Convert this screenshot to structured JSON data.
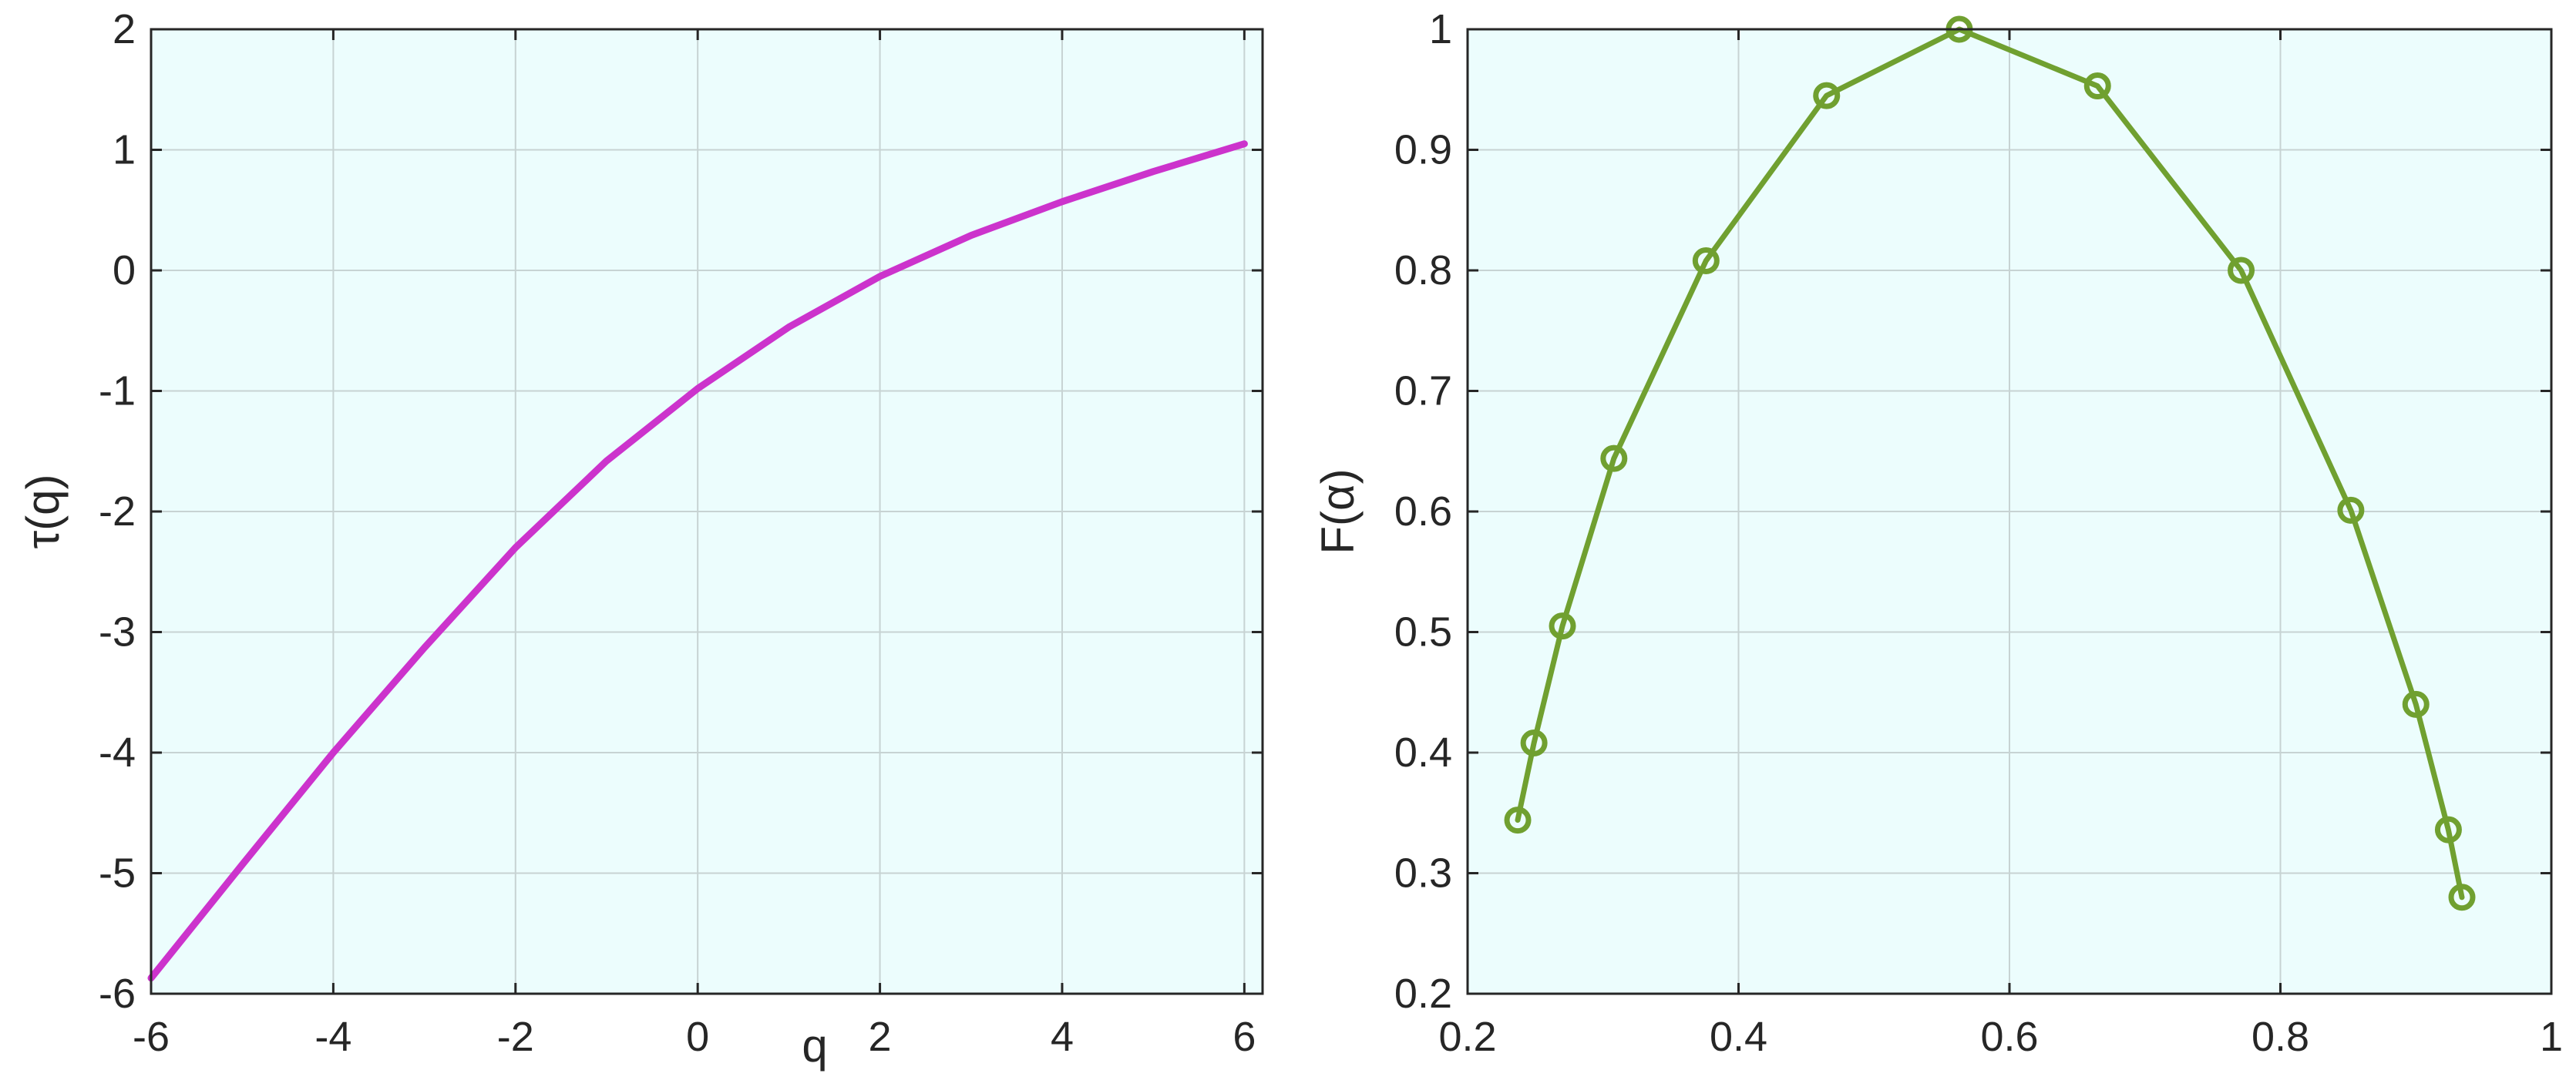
{
  "chart_data": [
    {
      "type": "line",
      "title": "",
      "xlabel": "q",
      "ylabel": "τ(q)",
      "xlim": [
        -6,
        6.2
      ],
      "ylim": [
        -6,
        2
      ],
      "xticks": [
        -6,
        -4,
        -2,
        0,
        2,
        4,
        6
      ],
      "yticks": [
        -6,
        -5,
        -4,
        -3,
        -2,
        -1,
        0,
        1,
        2
      ],
      "xtick_labels": [
        "-6",
        "-4",
        "-2",
        "0",
        "2",
        "4",
        "6"
      ],
      "ytick_labels": [
        "-6",
        "-5",
        "-4",
        "-3",
        "-2",
        "-1",
        "0",
        "1",
        "2"
      ],
      "grid": true,
      "background": "#ecfdfd",
      "series": [
        {
          "color": "#cc33cc",
          "markers": false,
          "x": [
            -6,
            -5,
            -4,
            -3,
            -2,
            -1,
            0,
            1,
            2,
            3,
            4,
            5,
            6
          ],
          "y": [
            -5.87,
            -4.93,
            -4.0,
            -3.13,
            -2.3,
            -1.58,
            -0.98,
            -0.47,
            -0.05,
            0.29,
            0.57,
            0.82,
            1.05
          ]
        }
      ]
    },
    {
      "type": "line",
      "title": "",
      "xlabel": "",
      "ylabel": "F(α)",
      "xlim": [
        0.2,
        1.0
      ],
      "ylim": [
        0.2,
        1.0
      ],
      "xticks": [
        0.2,
        0.4,
        0.6,
        0.8,
        1.0
      ],
      "yticks": [
        0.2,
        0.3,
        0.4,
        0.5,
        0.6,
        0.7,
        0.8,
        0.9,
        1.0
      ],
      "xtick_labels": [
        "0.2",
        "0.4",
        "0.6",
        "0.8",
        "1"
      ],
      "ytick_labels": [
        "0.2",
        "0.3",
        "0.4",
        "0.5",
        "0.6",
        "0.7",
        "0.8",
        "0.9",
        "1"
      ],
      "grid": true,
      "background": "#ecfdfd",
      "series": [
        {
          "color": "#70a030",
          "markers": true,
          "x": [
            0.237,
            0.249,
            0.27,
            0.308,
            0.376,
            0.465,
            0.563,
            0.665,
            0.771,
            0.852,
            0.9,
            0.924,
            0.934
          ],
          "y": [
            0.344,
            0.408,
            0.505,
            0.644,
            0.808,
            0.945,
            1.0,
            0.953,
            0.8,
            0.601,
            0.44,
            0.336,
            0.28
          ]
        }
      ]
    }
  ]
}
